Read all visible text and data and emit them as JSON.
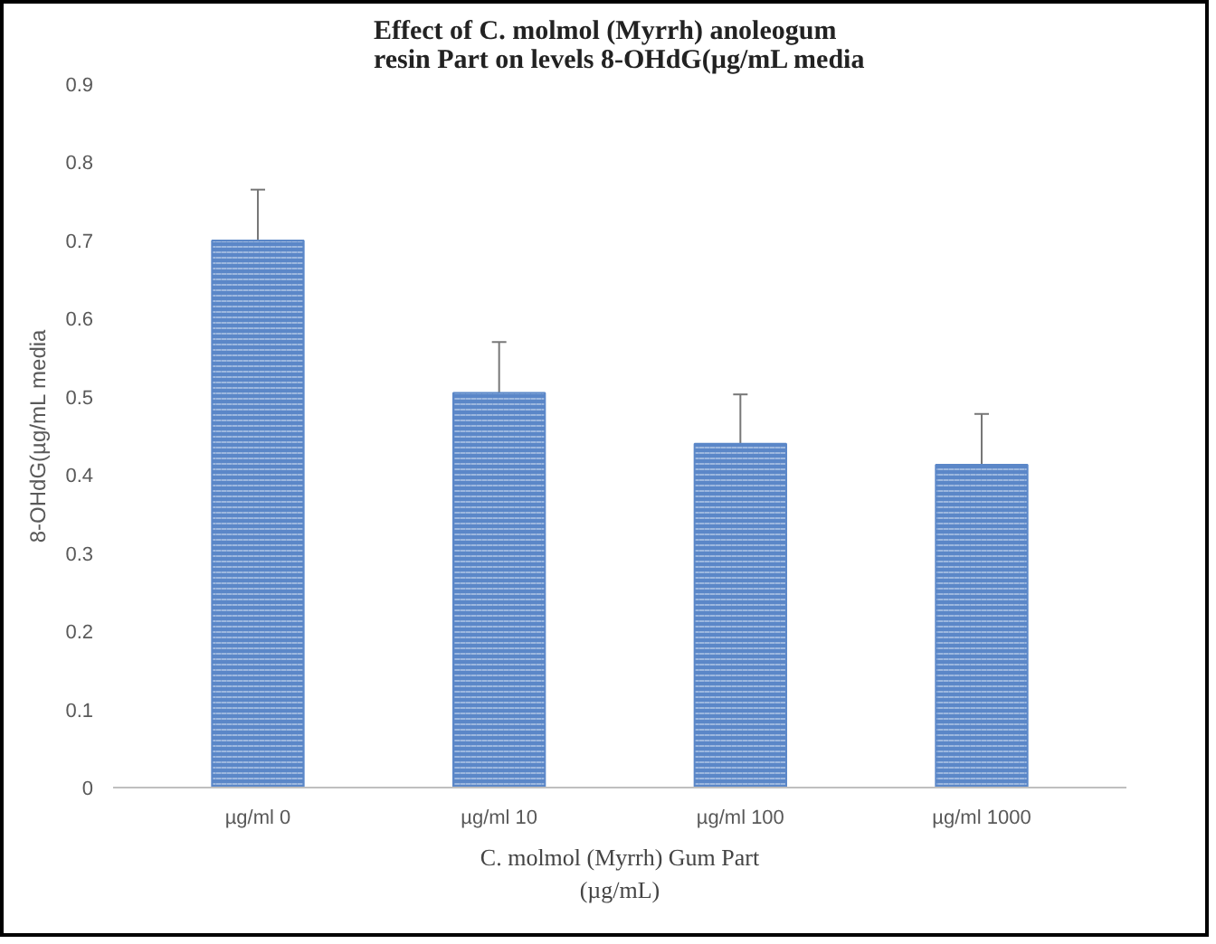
{
  "chart_data": {
    "type": "bar",
    "title": "Effect of C. molmol (Myrrh) anoleogum\nresin Part on levels 8-OHdG(µg/mL media",
    "xlabel": "C. molmol (Myrrh) Gum Part\n(µg/mL)",
    "ylabel": "8-OHdG(µg/mL media",
    "categories": [
      "µg/ml 0",
      "µg/ml 10",
      "µg/ml 100",
      "µg/ml 1000"
    ],
    "values": [
      0.7,
      0.505,
      0.44,
      0.413
    ],
    "errors": [
      0.065,
      0.065,
      0.063,
      0.065
    ],
    "color": "#5b87c8",
    "ylim": [
      0,
      0.9
    ],
    "yticks": [
      0,
      0.1,
      0.2,
      0.3,
      0.4,
      0.5,
      0.6,
      0.7,
      0.8,
      0.9
    ],
    "grid": false
  }
}
